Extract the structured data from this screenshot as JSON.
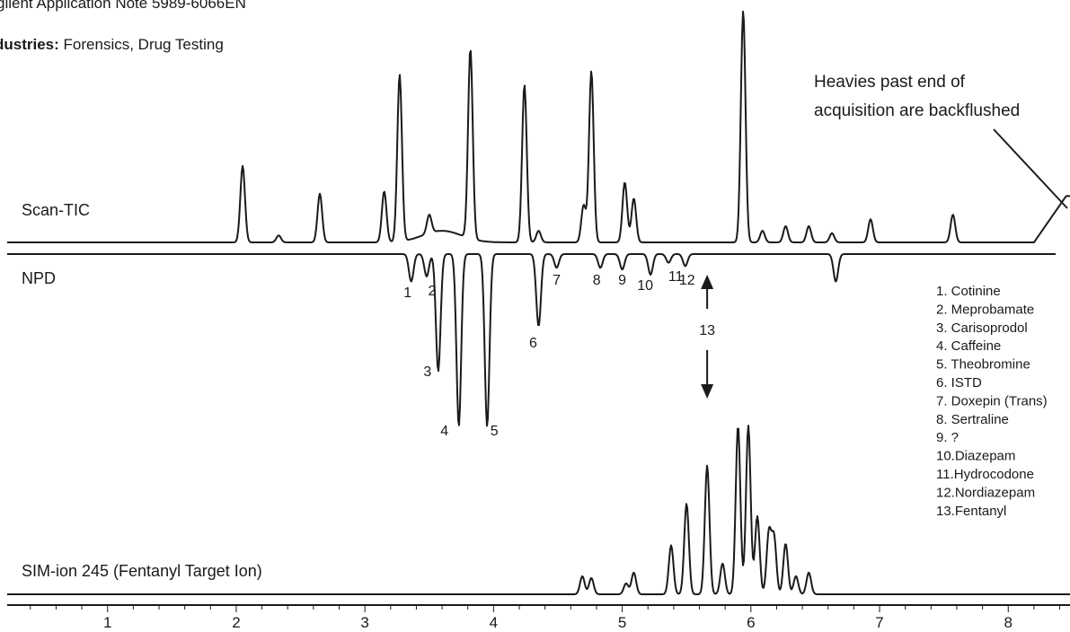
{
  "header": {
    "note": "gilent Application Note 5989-6066EN",
    "industries_label": "dustries:",
    "industries_value": "Forensics, Drug Testing"
  },
  "annotation": {
    "lines": [
      "Heavies past end of",
      "acquisition are backflushed"
    ]
  },
  "chart_data": {
    "type": "line",
    "title": "",
    "xlabel": "",
    "ylabel": "",
    "xlim": [
      0.22,
      8.48
    ],
    "x_ticks": [
      1,
      2,
      3,
      4,
      5,
      6,
      7,
      8
    ],
    "x_minor_step": 0.2,
    "grid": false,
    "series": [
      {
        "name": "Scan-TIC",
        "inverted": false,
        "peaks": [
          {
            "x": 2.05,
            "h": 0.33
          },
          {
            "x": 2.33,
            "h": 0.03
          },
          {
            "x": 2.65,
            "h": 0.21
          },
          {
            "x": 3.15,
            "h": 0.22
          },
          {
            "x": 3.27,
            "h": 0.72
          },
          {
            "x": 3.5,
            "h": 0.08
          },
          {
            "x": 3.82,
            "h": 0.82
          },
          {
            "x": 4.24,
            "h": 0.68
          },
          {
            "x": 4.35,
            "h": 0.05
          },
          {
            "x": 4.7,
            "h": 0.16
          },
          {
            "x": 4.76,
            "h": 0.74
          },
          {
            "x": 5.02,
            "h": 0.26
          },
          {
            "x": 5.09,
            "h": 0.19
          },
          {
            "x": 5.94,
            "h": 1.0
          },
          {
            "x": 6.09,
            "h": 0.05
          },
          {
            "x": 6.27,
            "h": 0.07
          },
          {
            "x": 6.45,
            "h": 0.07
          },
          {
            "x": 6.63,
            "h": 0.04
          },
          {
            "x": 6.93,
            "h": 0.1
          },
          {
            "x": 7.57,
            "h": 0.12
          }
        ]
      },
      {
        "name": "NPD",
        "inverted": true,
        "peaks": [
          {
            "x": 3.36,
            "h": 0.16,
            "label": "1"
          },
          {
            "x": 3.48,
            "h": 0.13,
            "label": "2"
          },
          {
            "x": 3.57,
            "h": 0.68,
            "label": "3"
          },
          {
            "x": 3.73,
            "h": 1.0,
            "label": "4"
          },
          {
            "x": 3.95,
            "h": 1.0,
            "label": "5"
          },
          {
            "x": 4.35,
            "h": 0.42,
            "label": "6"
          },
          {
            "x": 4.49,
            "h": 0.08,
            "label": "7"
          },
          {
            "x": 4.83,
            "h": 0.08,
            "label": "8"
          },
          {
            "x": 5.0,
            "h": 0.09,
            "label": "9"
          },
          {
            "x": 5.22,
            "h": 0.12,
            "label": "10"
          },
          {
            "x": 5.36,
            "h": 0.05,
            "label": "11"
          },
          {
            "x": 5.49,
            "h": 0.07,
            "label": "12"
          },
          {
            "x": 6.66,
            "h": 0.16
          }
        ]
      },
      {
        "name": "SIM-ion 245 (Fentanyl Target Ion)",
        "inverted": false,
        "peaks": [
          {
            "x": 4.69,
            "h": 0.1
          },
          {
            "x": 4.76,
            "h": 0.09
          },
          {
            "x": 5.03,
            "h": 0.06
          },
          {
            "x": 5.09,
            "h": 0.12
          },
          {
            "x": 5.38,
            "h": 0.27
          },
          {
            "x": 5.5,
            "h": 0.5
          },
          {
            "x": 5.66,
            "h": 0.71,
            "label": "13"
          },
          {
            "x": 5.78,
            "h": 0.17
          },
          {
            "x": 5.9,
            "h": 0.93
          },
          {
            "x": 5.98,
            "h": 0.93
          },
          {
            "x": 6.05,
            "h": 0.43
          },
          {
            "x": 6.14,
            "h": 0.34
          },
          {
            "x": 6.18,
            "h": 0.31
          },
          {
            "x": 6.27,
            "h": 0.28
          },
          {
            "x": 6.35,
            "h": 0.1
          },
          {
            "x": 6.45,
            "h": 0.12
          }
        ]
      }
    ],
    "peak_label_13": "13",
    "legend": [
      "1. Cotinine",
      "2. Meprobamate",
      "3. Carisoprodol",
      "4. Caffeine",
      "5. Theobromine",
      "6. ISTD",
      "7. Doxepin (Trans)",
      "8. Sertraline",
      "9. ?",
      "10.Diazepam",
      "11.Hydrocodone",
      "12.Nordiazepam",
      "13.Fentanyl"
    ]
  }
}
